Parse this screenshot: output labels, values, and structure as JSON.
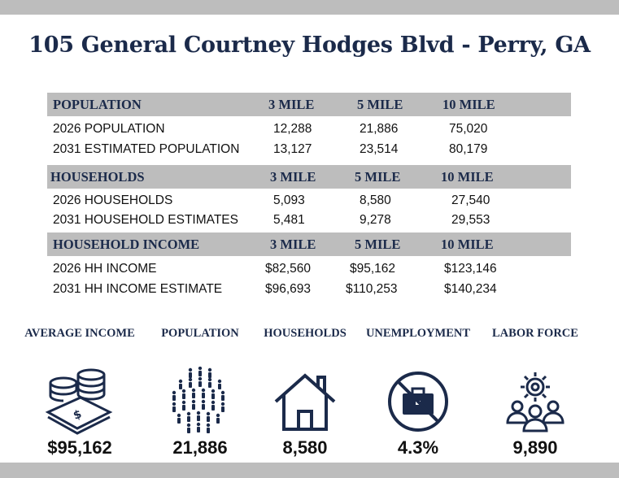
{
  "title": "105 General Courtney Hodges Blvd - Perry, GA",
  "sections": [
    {
      "header": "POPULATION",
      "cols": [
        "3 MILE",
        "5 MILE",
        "10 MILE"
      ],
      "rows": [
        {
          "label": "2026 POPULATION",
          "values": [
            "12,288",
            "21,886",
            "75,020"
          ]
        },
        {
          "label": "2031 ESTIMATED POPULATION",
          "values": [
            "13,127",
            "23,514",
            "80,179"
          ]
        }
      ]
    },
    {
      "header": "HOUSEHOLDS",
      "cols": [
        "3 MILE",
        "5 MILE",
        "10 MILE"
      ],
      "rows": [
        {
          "label": "2026 HOUSEHOLDS",
          "values": [
            "5,093",
            "8,580",
            "27,540"
          ]
        },
        {
          "label": "2031 HOUSEHOLD ESTIMATES",
          "values": [
            "5,481",
            "9,278",
            "29,553"
          ]
        }
      ]
    },
    {
      "header": "HOUSEHOLD INCOME",
      "cols": [
        "3 MILE",
        "5 MILE",
        "10 MILE"
      ],
      "rows": [
        {
          "label": "2026 HH INCOME",
          "values": [
            "$82,560",
            "$95,162",
            "$123,146"
          ]
        },
        {
          "label": "2031 HH INCOME ESTIMATE",
          "values": [
            "$96,693",
            "$110,253",
            "$140,234"
          ]
        }
      ]
    }
  ],
  "stats": [
    {
      "label": "AVERAGE INCOME",
      "value": "$95,162",
      "icon": "money-stack-icon"
    },
    {
      "label": "POPULATION",
      "value": "21,886",
      "icon": "people-crowd-icon"
    },
    {
      "label": "HOUSEHOLDS",
      "value": "8,580",
      "icon": "house-icon"
    },
    {
      "label": "UNEMPLOYMENT",
      "value": "4.3%",
      "icon": "no-briefcase-icon"
    },
    {
      "label": "LABOR FORCE",
      "value": "9,890",
      "icon": "team-gear-icon"
    }
  ],
  "colors": {
    "navy": "#1b2a4a",
    "band": "#bdbdbd"
  }
}
